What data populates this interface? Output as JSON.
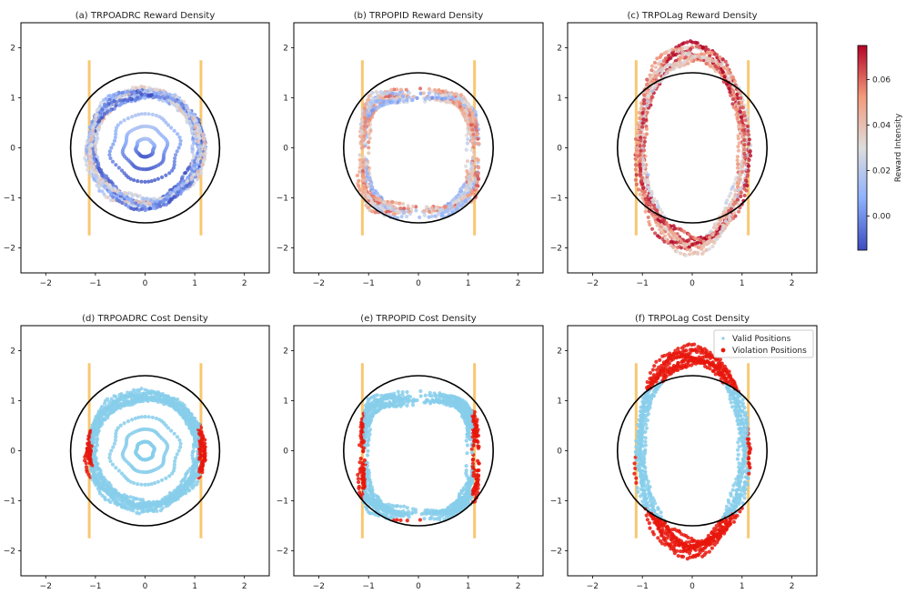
{
  "chart_data": {
    "type": "scatter",
    "grid": false,
    "xlim": [
      -2.5,
      2.5
    ],
    "ylim": [
      -2.5,
      2.5
    ],
    "xticks": [
      "−2",
      "−1",
      "0",
      "1",
      "2"
    ],
    "yticks": [
      "2",
      "1",
      "0",
      "−1",
      "−2"
    ],
    "boundary_circle": {
      "radius": 1.5,
      "color": "#000000"
    },
    "walls": {
      "x": [
        -1.125,
        1.125
      ],
      "y_range": [
        -1.75,
        1.75
      ],
      "color": "#f8c870"
    },
    "panels": [
      {
        "title": "(a) TRPOADRC Reward Density",
        "kind": "reward",
        "shape": "circle",
        "rx": 1.15,
        "ry": 1.15,
        "cx": 0.0,
        "cy": 0.0,
        "inner": true,
        "reward_level": 0.3
      },
      {
        "title": "(b) TRPOPID Reward Density",
        "kind": "reward",
        "shape": "rounded-square",
        "rx": 1.15,
        "ry": 1.2,
        "cx": 0.0,
        "cy": -0.1,
        "inner": false,
        "reward_level": 0.5
      },
      {
        "title": "(c) TRPOLag Reward Density",
        "kind": "reward",
        "shape": "ellipse",
        "rx": 1.1,
        "ry": 2.0,
        "cx": 0.0,
        "cy": 0.0,
        "inner": false,
        "reward_level": 0.65
      },
      {
        "title": "(d) TRPOADRC Cost Density",
        "kind": "cost",
        "shape": "circle",
        "rx": 1.15,
        "ry": 1.15,
        "cx": 0.0,
        "cy": 0.0,
        "inner": true,
        "violation_rule": "walls"
      },
      {
        "title": "(e) TRPOPID Cost Density",
        "kind": "cost",
        "shape": "rounded-square",
        "rx": 1.15,
        "ry": 1.2,
        "cx": 0.0,
        "cy": -0.1,
        "inner": false,
        "violation_rule": "walls-and-bottom"
      },
      {
        "title": "(f) TRPOLag Cost Density",
        "kind": "cost",
        "shape": "ellipse",
        "rx": 1.1,
        "ry": 2.0,
        "cx": 0.0,
        "cy": 0.0,
        "inner": false,
        "violation_rule": "outside-circle"
      }
    ],
    "legend": {
      "placement": "top-right",
      "entries": [
        {
          "label": "Valid Positions",
          "color": "#87ceeb"
        },
        {
          "label": "Violation Positions",
          "color": "#e8160c"
        }
      ]
    },
    "colorbar": {
      "label": "Reward Intensity",
      "range": [
        -0.015,
        0.075
      ],
      "ticks": [
        0.0,
        0.02,
        0.04,
        0.06
      ],
      "tick_labels": [
        "0.00",
        "0.02",
        "0.04",
        "0.06"
      ],
      "colormap": "coolwarm"
    }
  }
}
